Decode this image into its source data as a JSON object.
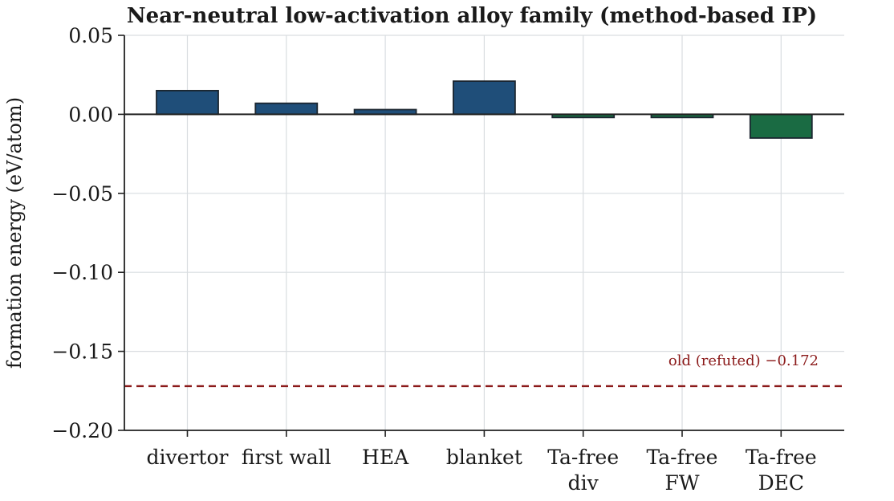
{
  "chart_data": {
    "type": "bar",
    "title": "Near-neutral low-activation alloy family (method-based IP)",
    "xlabel": "",
    "ylabel": "formation energy (eV/atom)",
    "ylim": [
      -0.2,
      0.05
    ],
    "yticks": [
      0.05,
      0.0,
      -0.05,
      -0.1,
      -0.15,
      -0.2
    ],
    "ytick_labels": [
      "0.05",
      "0.00",
      "−0.05",
      "−0.10",
      "−0.15",
      "−0.20"
    ],
    "categories": [
      "divertor",
      "first wall",
      "HEA",
      "blanket",
      "Ta-free\ndiv",
      "Ta-free\nFW",
      "Ta-free\nDEC"
    ],
    "values": [
      0.015,
      0.007,
      0.003,
      0.021,
      -0.002,
      -0.002,
      -0.015
    ],
    "bar_colors": [
      "#1f4e79",
      "#1f4e79",
      "#1f4e79",
      "#1f4e79",
      "#1a6b43",
      "#1a6b43",
      "#1a6b43"
    ],
    "grid": true,
    "reference_line": {
      "value": -0.172,
      "label": "old (refuted) −0.172",
      "color": "#8b1a1a",
      "style": "dashed"
    }
  }
}
